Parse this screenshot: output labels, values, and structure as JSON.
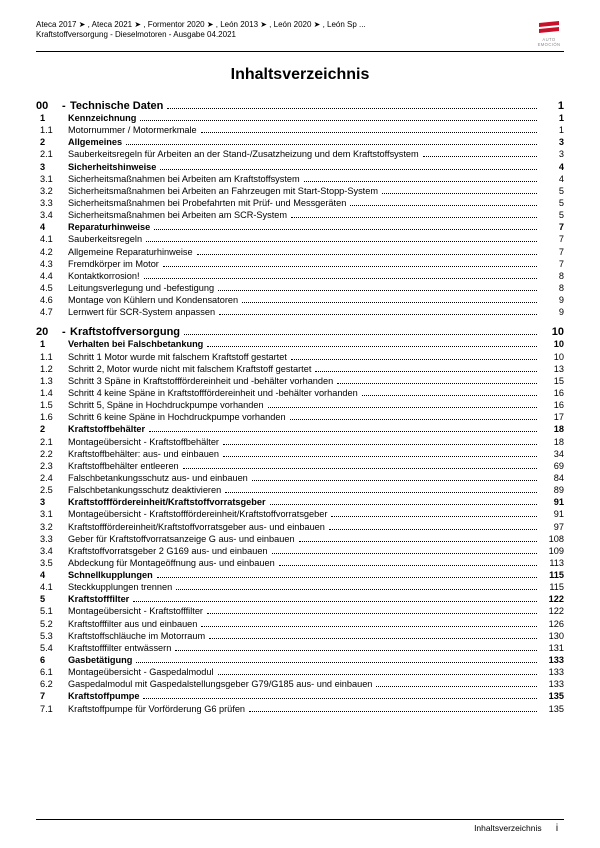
{
  "header": {
    "line1": "Ateca 2017 ➤ , Ateca 2021 ➤ , Formentor 2020 ➤ , León 2013 ➤ , León 2020 ➤ , León Sp ...",
    "line2": "Kraftstoffversorgung - Dieselmotoren - Ausgabe 04.2021",
    "logo_brand": "SEAT",
    "logo_sub": "AUTO EMOCIÓN",
    "logo_color": "#c9102b"
  },
  "title": "Inhaltsverzeichnis",
  "sections": [
    {
      "no": "00",
      "dash": "-",
      "title": "Technische Daten",
      "page": "1",
      "rows": [
        {
          "n": "1",
          "t": "Kennzeichnung",
          "p": "1",
          "bold": true
        },
        {
          "n": "1.1",
          "t": "Motornummer / Motormerkmale",
          "p": "1"
        },
        {
          "n": "2",
          "t": "Allgemeines",
          "p": "3",
          "bold": true
        },
        {
          "n": "2.1",
          "t": "Sauberkeitsregeln für Arbeiten an der Stand-/Zusatzheizung und dem Kraftstoffsystem",
          "p": "3"
        },
        {
          "n": "3",
          "t": "Sicherheitshinweise",
          "p": "4",
          "bold": true
        },
        {
          "n": "3.1",
          "t": "Sicherheitsmaßnahmen bei Arbeiten am Kraftstoffsystem",
          "p": "4"
        },
        {
          "n": "3.2",
          "t": "Sicherheitsmaßnahmen bei Arbeiten an Fahrzeugen mit Start-Stopp-System",
          "p": "5"
        },
        {
          "n": "3.3",
          "t": "Sicherheitsmaßnahmen bei Probefahrten mit Prüf- und Messgeräten",
          "p": "5"
        },
        {
          "n": "3.4",
          "t": "Sicherheitsmaßnahmen bei Arbeiten am SCR-System",
          "p": "5"
        },
        {
          "n": "4",
          "t": "Reparaturhinweise",
          "p": "7",
          "bold": true
        },
        {
          "n": "4.1",
          "t": "Sauberkeitsregeln",
          "p": "7"
        },
        {
          "n": "4.2",
          "t": "Allgemeine Reparaturhinweise",
          "p": "7"
        },
        {
          "n": "4.3",
          "t": "Fremdkörper im Motor",
          "p": "7"
        },
        {
          "n": "4.4",
          "t": "Kontaktkorrosion!",
          "p": "8"
        },
        {
          "n": "4.5",
          "t": "Leitungsverlegung und -befestigung",
          "p": "8"
        },
        {
          "n": "4.6",
          "t": "Montage von Kühlern und Kondensatoren",
          "p": "9"
        },
        {
          "n": "4.7",
          "t": "Lernwert für SCR-System anpassen",
          "p": "9"
        }
      ]
    },
    {
      "no": "20",
      "dash": "-",
      "title": "Kraftstoffversorgung",
      "page": "10",
      "rows": [
        {
          "n": "1",
          "t": "Verhalten bei Falschbetankung",
          "p": "10",
          "bold": true
        },
        {
          "n": "1.1",
          "t": "Schritt 1 Motor wurde mit falschem Kraftstoff gestartet",
          "p": "10"
        },
        {
          "n": "1.2",
          "t": "Schritt 2, Motor wurde nicht mit falschem Kraftstoff gestartet",
          "p": "13"
        },
        {
          "n": "1.3",
          "t": "Schritt 3 Späne in Kraftstofffördereinheit und -behälter vorhanden",
          "p": "15"
        },
        {
          "n": "1.4",
          "t": "Schritt 4 keine Späne in Kraftstofffördereinheit und -behälter vorhanden",
          "p": "16"
        },
        {
          "n": "1.5",
          "t": "Schritt 5, Späne in Hochdruckpumpe vorhanden",
          "p": "16"
        },
        {
          "n": "1.6",
          "t": "Schritt 6 keine Späne in Hochdruckpumpe vorhanden",
          "p": "17"
        },
        {
          "n": "2",
          "t": "Kraftstoffbehälter",
          "p": "18",
          "bold": true
        },
        {
          "n": "2.1",
          "t": "Montageübersicht - Kraftstoffbehälter",
          "p": "18"
        },
        {
          "n": "2.2",
          "t": "Kraftstoffbehälter: aus- und einbauen",
          "p": "34"
        },
        {
          "n": "2.3",
          "t": "Kraftstoffbehälter entleeren",
          "p": "69"
        },
        {
          "n": "2.4",
          "t": "Falschbetankungsschutz aus- und einbauen",
          "p": "84"
        },
        {
          "n": "2.5",
          "t": "Falschbetankungsschutz deaktivieren",
          "p": "89"
        },
        {
          "n": "3",
          "t": "Kraftstofffördereinheit/Kraftstoffvorratsgeber",
          "p": "91",
          "bold": true
        },
        {
          "n": "3.1",
          "t": "Montageübersicht - Kraftstofffördereinheit/Kraftstoffvorratsgeber",
          "p": "91"
        },
        {
          "n": "3.2",
          "t": "Kraftstofffördereinheit/Kraftstoffvorratsgeber aus- und einbauen",
          "p": "97"
        },
        {
          "n": "3.3",
          "t": "Geber für Kraftstoffvorratsanzeige G aus- und einbauen",
          "p": "108"
        },
        {
          "n": "3.4",
          "t": "Kraftstoffvorratsgeber 2 G169 aus- und einbauen",
          "p": "109"
        },
        {
          "n": "3.5",
          "t": "Abdeckung für Montageöffnung aus- und einbauen",
          "p": "113"
        },
        {
          "n": "4",
          "t": "Schnellkupplungen",
          "p": "115",
          "bold": true
        },
        {
          "n": "4.1",
          "t": "Steckkupplungen trennen",
          "p": "115"
        },
        {
          "n": "5",
          "t": "Kraftstofffilter",
          "p": "122",
          "bold": true
        },
        {
          "n": "5.1",
          "t": "Montageübersicht - Kraftstofffilter",
          "p": "122"
        },
        {
          "n": "5.2",
          "t": "Kraftstofffilter aus und einbauen",
          "p": "126"
        },
        {
          "n": "5.3",
          "t": "Kraftstoffschläuche im Motorraum",
          "p": "130"
        },
        {
          "n": "5.4",
          "t": "Kraftstofffilter entwässern",
          "p": "131"
        },
        {
          "n": "6",
          "t": "Gasbetätigung",
          "p": "133",
          "bold": true
        },
        {
          "n": "6.1",
          "t": "Montageübersicht - Gaspedalmodul",
          "p": "133"
        },
        {
          "n": "6.2",
          "t": "Gaspedalmodul mit Gaspedalstellungsgeber G79/G185 aus- und einbauen",
          "p": "133"
        },
        {
          "n": "7",
          "t": "Kraftstoffpumpe",
          "p": "135",
          "bold": true
        },
        {
          "n": "7.1",
          "t": "Kraftstoffpumpe für Vorförderung G6 prüfen",
          "p": "135"
        }
      ]
    }
  ],
  "footer": {
    "label": "Inhaltsverzeichnis",
    "page": "i"
  }
}
